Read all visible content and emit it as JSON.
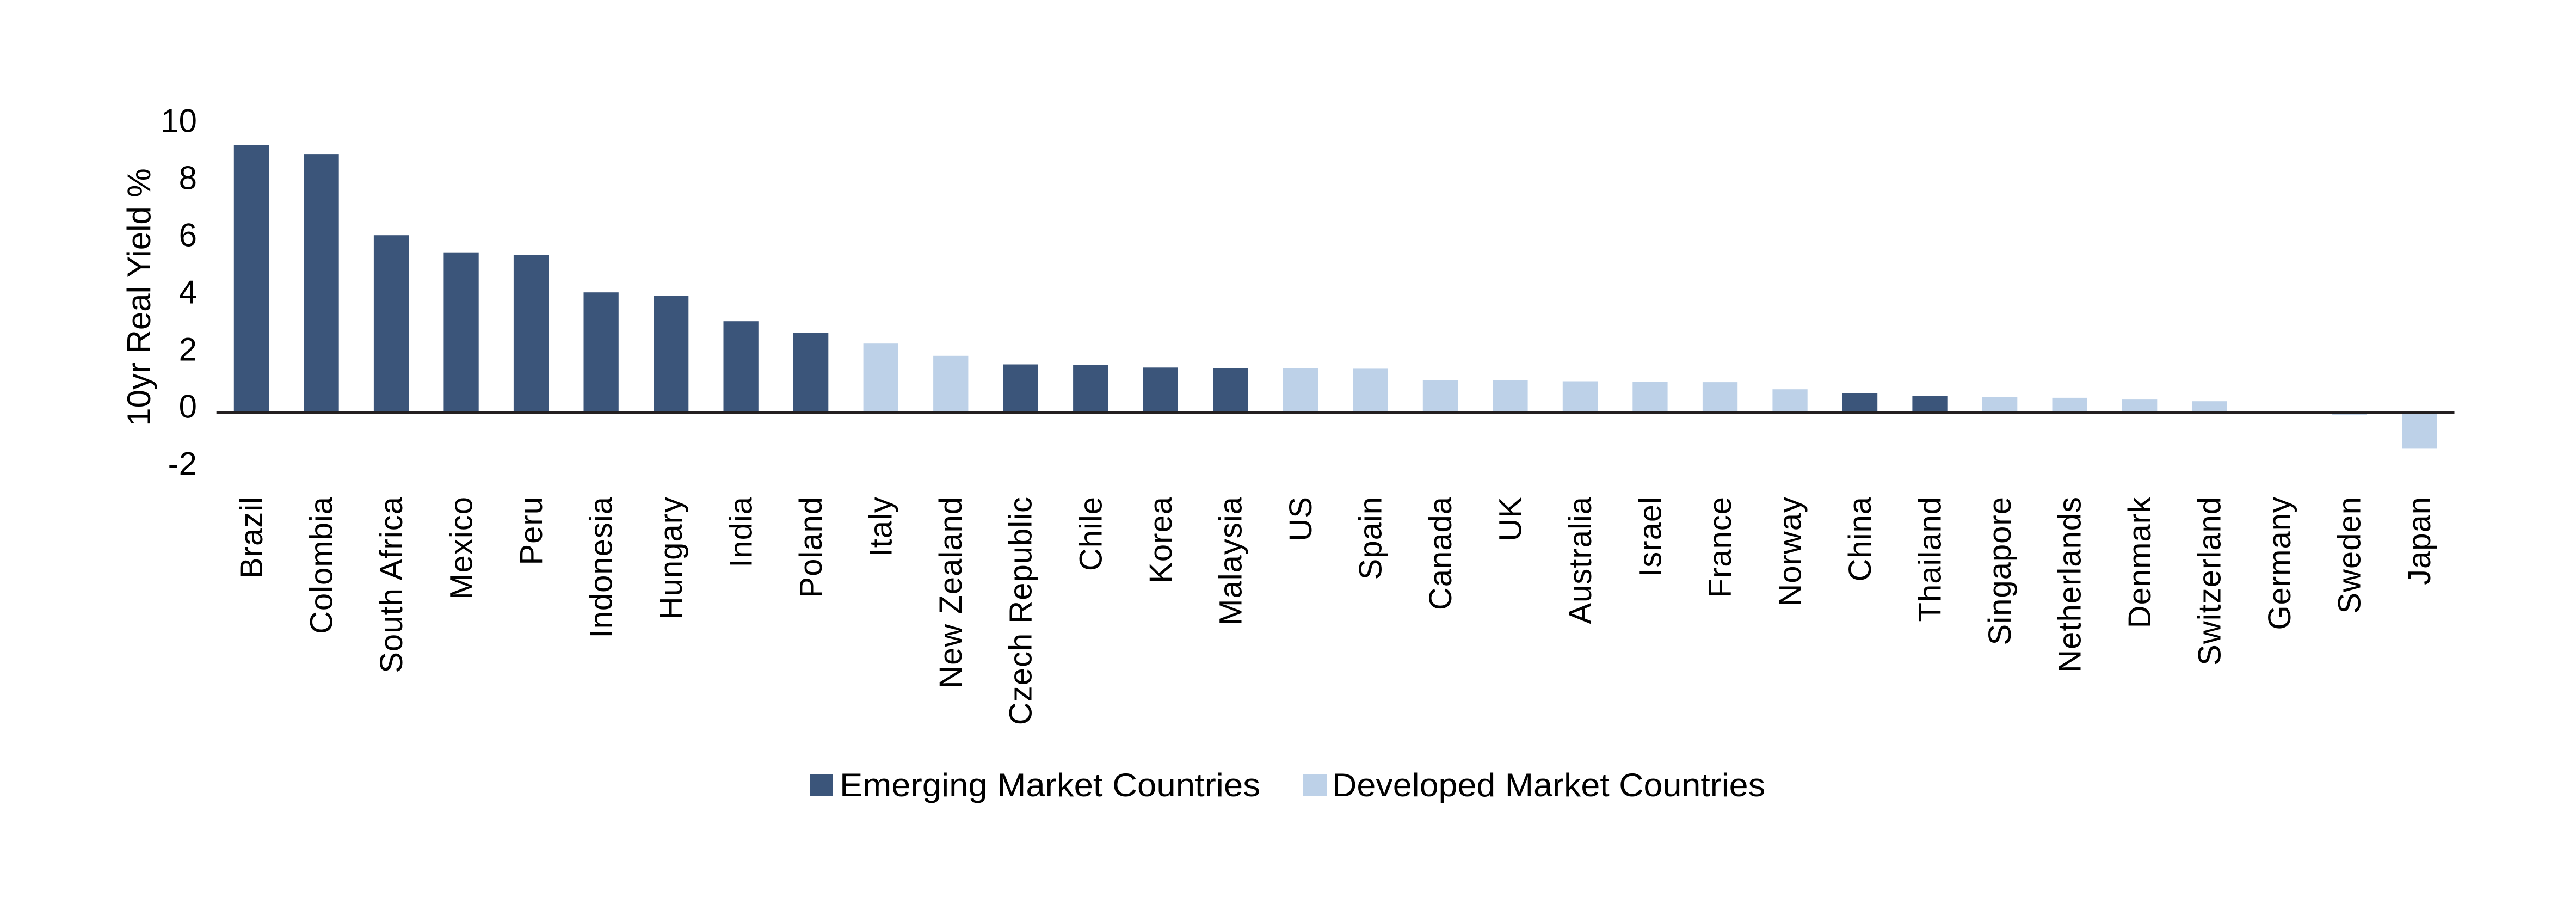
{
  "chart_data": {
    "type": "bar",
    "title": "",
    "xlabel": "",
    "ylabel": "10yr Real Yield %",
    "ylim": [
      -2,
      10
    ],
    "yticks": [
      10,
      8,
      6,
      4,
      2,
      0,
      -2
    ],
    "grid": false,
    "legend_position": "bottom-center",
    "categories": [
      "Brazil",
      "Colombia",
      "South Africa",
      "Mexico",
      "Peru",
      "Indonesia",
      "Hungary",
      "India",
      "Poland",
      "Italy",
      "New Zealand",
      "Czech Republic",
      "Chile",
      "Korea",
      "Malaysia",
      "US",
      "Spain",
      "Canada",
      "UK",
      "Australia",
      "Israel",
      "France",
      "Norway",
      "China",
      "Thailand",
      "Singapore",
      "Netherlands",
      "Denmark",
      "Switzerland",
      "Germany",
      "Sweden",
      "Japan"
    ],
    "values": [
      9.35,
      9.04,
      6.2,
      5.6,
      5.51,
      4.2,
      4.07,
      3.19,
      2.79,
      2.41,
      1.98,
      1.68,
      1.66,
      1.57,
      1.55,
      1.55,
      1.53,
      1.13,
      1.12,
      1.09,
      1.07,
      1.06,
      0.81,
      0.68,
      0.57,
      0.54,
      0.51,
      0.45,
      0.39,
      0.04,
      -0.08,
      -1.27
    ],
    "groups": [
      "EM",
      "EM",
      "EM",
      "EM",
      "EM",
      "EM",
      "EM",
      "EM",
      "EM",
      "DM",
      "DM",
      "EM",
      "EM",
      "EM",
      "EM",
      "DM",
      "DM",
      "DM",
      "DM",
      "DM",
      "DM",
      "DM",
      "DM",
      "EM",
      "EM",
      "DM",
      "DM",
      "DM",
      "DM",
      "DM",
      "DM",
      "DM"
    ],
    "series": [
      {
        "key": "EM",
        "name": "Emerging Market Countries",
        "color": "#3B557A"
      },
      {
        "key": "DM",
        "name": "Developed Market Countries",
        "color": "#BDD1E8"
      }
    ],
    "axis_color": "#231F20"
  }
}
